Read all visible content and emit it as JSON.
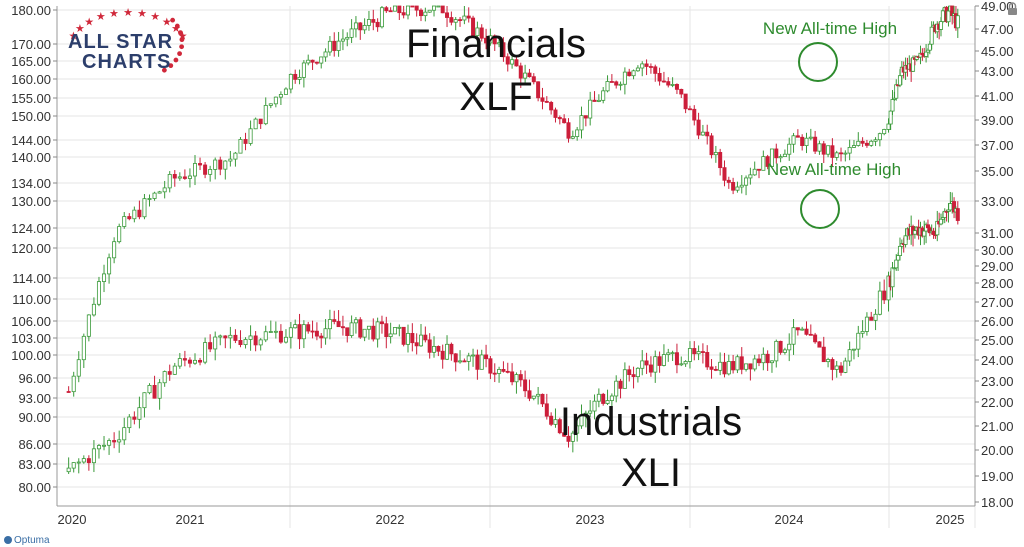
{
  "logo": {
    "line1": "ALL STAR",
    "line2": "CHARTS",
    "star_color": "#d0283a",
    "text_color": "#2c3e6b"
  },
  "brand": "Optuma",
  "colors": {
    "up": "#3a9a3a",
    "down": "#cc1e3a",
    "annotation": "#2e8b2e",
    "grid": "#e6e6e6"
  },
  "chart_data": {
    "type": "candlestick",
    "x_axis": {
      "labels": [
        "2020",
        "2021",
        "2022",
        "2023",
        "2024",
        "2025"
      ]
    },
    "left_axis": {
      "series": "XLF",
      "ticks": [
        "180.00",
        "170.00",
        "165.00",
        "160.00",
        "155.00",
        "150.00",
        "144.00",
        "140.00",
        "134.00",
        "130.00",
        "124.00",
        "120.00",
        "114.00",
        "110.00",
        "106.00",
        "103.00",
        "100.00",
        "96.00",
        "93.00",
        "90.00",
        "86.00",
        "83.00",
        "80.00"
      ]
    },
    "right_axis": {
      "series": "XLI",
      "ticks": [
        "49.00",
        "47.00",
        "45.00",
        "43.00",
        "41.00",
        "39.00",
        "37.00",
        "35.00",
        "33.00",
        "31.00",
        "30.00",
        "29.00",
        "28.00",
        "27.00",
        "26.00",
        "25.00",
        "24.00",
        "23.00",
        "22.00",
        "21.00",
        "20.00",
        "19.00",
        "18.00"
      ]
    },
    "series": [
      {
        "name": "Financials XLF",
        "title_line1": "Financials",
        "title_line2": "XLF",
        "annotation": "New All-time High",
        "points": [
          [
            2020.05,
            22.5
          ],
          [
            2020.25,
            31
          ],
          [
            2020.5,
            34.5
          ],
          [
            2020.75,
            36
          ],
          [
            2021.0,
            42.5
          ],
          [
            2021.25,
            46
          ],
          [
            2021.5,
            48.5
          ],
          [
            2021.75,
            49
          ],
          [
            2022.0,
            46
          ],
          [
            2022.2,
            42
          ],
          [
            2022.4,
            38
          ],
          [
            2022.55,
            41
          ],
          [
            2022.75,
            44
          ],
          [
            2022.95,
            41
          ],
          [
            2023.2,
            34
          ],
          [
            2023.4,
            36
          ],
          [
            2023.55,
            37.5
          ],
          [
            2023.75,
            36
          ],
          [
            2023.95,
            38
          ],
          [
            2024.15,
            43
          ],
          [
            2024.35,
            44
          ],
          [
            2024.55,
            47.5
          ],
          [
            2024.7,
            48.5
          ],
          [
            2024.85,
            47
          ],
          [
            2025.0,
            50
          ]
        ]
      },
      {
        "name": "Industrials XLI",
        "title_line1": "Industrials",
        "title_line2": "XLI",
        "annotation": "New All-time High",
        "points": [
          [
            2020.05,
            82
          ],
          [
            2020.25,
            87
          ],
          [
            2020.5,
            98
          ],
          [
            2020.75,
            103
          ],
          [
            2021.0,
            104
          ],
          [
            2021.25,
            105
          ],
          [
            2021.5,
            104
          ],
          [
            2021.75,
            101
          ],
          [
            2022.0,
            98
          ],
          [
            2022.2,
            94
          ],
          [
            2022.4,
            87
          ],
          [
            2022.55,
            93
          ],
          [
            2022.75,
            98
          ],
          [
            2022.95,
            100
          ],
          [
            2023.2,
            98
          ],
          [
            2023.4,
            100
          ],
          [
            2023.55,
            104
          ],
          [
            2023.75,
            97
          ],
          [
            2023.95,
            110
          ],
          [
            2024.15,
            122
          ],
          [
            2024.35,
            124
          ],
          [
            2024.55,
            123
          ],
          [
            2024.7,
            130
          ],
          [
            2024.85,
            126
          ],
          [
            2025.0,
            130
          ]
        ]
      }
    ]
  }
}
